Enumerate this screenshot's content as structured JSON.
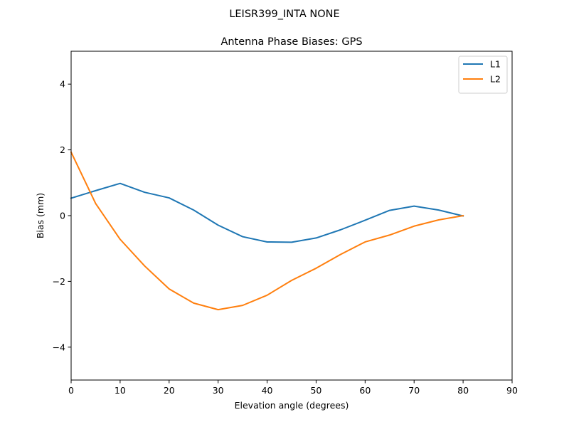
{
  "figure": {
    "suptitle": "LEISR399_INTA   NONE"
  },
  "chart_data": {
    "type": "line",
    "title": "Antenna Phase Biases: GPS",
    "xlabel": "Elevation angle (degrees)",
    "ylabel": "Bias (mm)",
    "xlim": [
      0,
      90
    ],
    "ylim": [
      -5,
      5
    ],
    "xticks": [
      0,
      10,
      20,
      30,
      40,
      50,
      60,
      70,
      80,
      90
    ],
    "yticks": [
      -4,
      -2,
      0,
      2,
      4
    ],
    "xtick_labels": [
      "0",
      "10",
      "20",
      "30",
      "40",
      "50",
      "60",
      "70",
      "80",
      "90"
    ],
    "ytick_labels": [
      "−4",
      "−2",
      "0",
      "2",
      "4"
    ],
    "grid": false,
    "legend_position": "upper right",
    "x": [
      0,
      5,
      10,
      15,
      20,
      25,
      30,
      35,
      40,
      45,
      50,
      55,
      60,
      65,
      70,
      75,
      80
    ],
    "series": [
      {
        "name": "L1",
        "color": "#1f77b4",
        "values": [
          0.53,
          0.76,
          0.98,
          0.71,
          0.54,
          0.17,
          -0.29,
          -0.64,
          -0.8,
          -0.81,
          -0.68,
          -0.43,
          -0.14,
          0.16,
          0.29,
          0.17,
          -0.01
        ]
      },
      {
        "name": "L2",
        "color": "#ff7f0e",
        "values": [
          1.93,
          0.37,
          -0.72,
          -1.53,
          -2.23,
          -2.66,
          -2.86,
          -2.73,
          -2.42,
          -1.97,
          -1.6,
          -1.18,
          -0.8,
          -0.59,
          -0.32,
          -0.13,
          0.0
        ]
      }
    ]
  }
}
